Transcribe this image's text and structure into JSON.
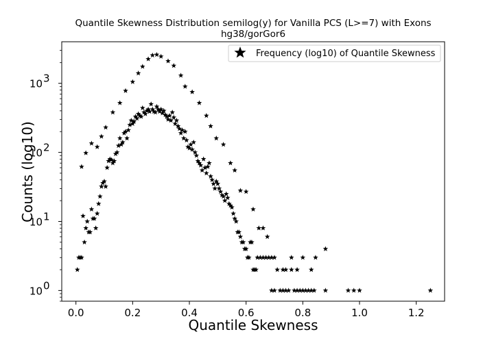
{
  "chart_data": {
    "type": "scatter",
    "title": "Quantile Skewness Distribution semilog(y) for Vanilla PCS (L>=7) with Exons",
    "subtitle": "hg38/gorGor6",
    "xlabel": "Quantile Skewness",
    "ylabel": "Counts (log10)",
    "xlim": [
      -0.05,
      1.3
    ],
    "ylim": [
      0.7,
      4000
    ],
    "yscale": "log",
    "xticks": [
      0.0,
      0.2,
      0.4,
      0.6,
      0.8,
      1.0,
      1.2
    ],
    "xtick_labels": [
      "0.0",
      "0.2",
      "0.4",
      "0.6",
      "0.8",
      "1.0",
      "1.2"
    ],
    "yticks": [
      1,
      10,
      100,
      1000
    ],
    "ytick_labels": [
      "10",
      "10",
      "10",
      "10"
    ],
    "ytick_exponents": [
      "0",
      "1",
      "2",
      "3"
    ],
    "grid": false,
    "legend_position": "top-right",
    "marker": "star",
    "marker_color": "#000000",
    "series": [
      {
        "name": "Frequency (log10) of Quantile Skewness",
        "points": [
          [
            0.005,
            2
          ],
          [
            0.01,
            3
          ],
          [
            0.015,
            3
          ],
          [
            0.02,
            3
          ],
          [
            0.025,
            12
          ],
          [
            0.03,
            5
          ],
          [
            0.035,
            8
          ],
          [
            0.04,
            10
          ],
          [
            0.045,
            7
          ],
          [
            0.05,
            7
          ],
          [
            0.055,
            15
          ],
          [
            0.06,
            11
          ],
          [
            0.065,
            11
          ],
          [
            0.07,
            8
          ],
          [
            0.075,
            13
          ],
          [
            0.08,
            18
          ],
          [
            0.085,
            23
          ],
          [
            0.09,
            32
          ],
          [
            0.095,
            36
          ],
          [
            0.1,
            38
          ],
          [
            0.105,
            32
          ],
          [
            0.11,
            60
          ],
          [
            0.115,
            75
          ],
          [
            0.12,
            80
          ],
          [
            0.125,
            78
          ],
          [
            0.13,
            70
          ],
          [
            0.135,
            75
          ],
          [
            0.14,
            95
          ],
          [
            0.145,
            100
          ],
          [
            0.15,
            125
          ],
          [
            0.155,
            160
          ],
          [
            0.16,
            130
          ],
          [
            0.165,
            140
          ],
          [
            0.17,
            190
          ],
          [
            0.175,
            200
          ],
          [
            0.18,
            160
          ],
          [
            0.185,
            210
          ],
          [
            0.19,
            250
          ],
          [
            0.195,
            290
          ],
          [
            0.2,
            260
          ],
          [
            0.205,
            280
          ],
          [
            0.21,
            330
          ],
          [
            0.215,
            310
          ],
          [
            0.22,
            360
          ],
          [
            0.225,
            340
          ],
          [
            0.23,
            330
          ],
          [
            0.235,
            440
          ],
          [
            0.24,
            380
          ],
          [
            0.245,
            360
          ],
          [
            0.25,
            400
          ],
          [
            0.255,
            420
          ],
          [
            0.26,
            390
          ],
          [
            0.265,
            500
          ],
          [
            0.27,
            420
          ],
          [
            0.275,
            390
          ],
          [
            0.28,
            380
          ],
          [
            0.285,
            460
          ],
          [
            0.29,
            420
          ],
          [
            0.295,
            390
          ],
          [
            0.3,
            420
          ],
          [
            0.305,
            370
          ],
          [
            0.31,
            400
          ],
          [
            0.315,
            350
          ],
          [
            0.32,
            330
          ],
          [
            0.325,
            300
          ],
          [
            0.33,
            340
          ],
          [
            0.335,
            290
          ],
          [
            0.34,
            380
          ],
          [
            0.345,
            320
          ],
          [
            0.35,
            260
          ],
          [
            0.355,
            290
          ],
          [
            0.36,
            240
          ],
          [
            0.365,
            220
          ],
          [
            0.37,
            190
          ],
          [
            0.375,
            210
          ],
          [
            0.38,
            160
          ],
          [
            0.385,
            200
          ],
          [
            0.39,
            150
          ],
          [
            0.395,
            120
          ],
          [
            0.4,
            115
          ],
          [
            0.405,
            130
          ],
          [
            0.41,
            110
          ],
          [
            0.415,
            140
          ],
          [
            0.42,
            100
          ],
          [
            0.425,
            90
          ],
          [
            0.43,
            75
          ],
          [
            0.435,
            70
          ],
          [
            0.44,
            65
          ],
          [
            0.445,
            55
          ],
          [
            0.45,
            80
          ],
          [
            0.455,
            60
          ],
          [
            0.46,
            50
          ],
          [
            0.465,
            62
          ],
          [
            0.47,
            70
          ],
          [
            0.475,
            45
          ],
          [
            0.48,
            40
          ],
          [
            0.485,
            35
          ],
          [
            0.49,
            30
          ],
          [
            0.495,
            38
          ],
          [
            0.5,
            35
          ],
          [
            0.505,
            30
          ],
          [
            0.51,
            27
          ],
          [
            0.515,
            24
          ],
          [
            0.52,
            23
          ],
          [
            0.525,
            20
          ],
          [
            0.53,
            25
          ],
          [
            0.535,
            22
          ],
          [
            0.54,
            18
          ],
          [
            0.545,
            17
          ],
          [
            0.55,
            16
          ],
          [
            0.555,
            13
          ],
          [
            0.56,
            11
          ],
          [
            0.565,
            10
          ],
          [
            0.57,
            7
          ],
          [
            0.575,
            7
          ],
          [
            0.58,
            6
          ],
          [
            0.585,
            5
          ],
          [
            0.59,
            5
          ],
          [
            0.595,
            4
          ],
          [
            0.6,
            4
          ],
          [
            0.605,
            3
          ],
          [
            0.61,
            3
          ],
          [
            0.615,
            5
          ],
          [
            0.62,
            5
          ],
          [
            0.625,
            2
          ],
          [
            0.63,
            2
          ],
          [
            0.635,
            2
          ],
          [
            0.64,
            3
          ],
          [
            0.65,
            3
          ],
          [
            0.66,
            3
          ],
          [
            0.67,
            3
          ],
          [
            0.68,
            3
          ],
          [
            0.69,
            1
          ],
          [
            0.7,
            1
          ],
          [
            0.71,
            2
          ],
          [
            0.72,
            1
          ],
          [
            0.73,
            1
          ],
          [
            0.74,
            1
          ],
          [
            0.75,
            1
          ],
          [
            0.76,
            2
          ],
          [
            0.77,
            1
          ],
          [
            0.78,
            1
          ],
          [
            0.79,
            1
          ],
          [
            0.8,
            1
          ],
          [
            0.81,
            1
          ],
          [
            0.82,
            1
          ],
          [
            0.83,
            1
          ],
          [
            0.84,
            1
          ],
          [
            0.88,
            1
          ],
          [
            0.96,
            1
          ],
          [
            0.98,
            1
          ],
          [
            1.0,
            1
          ],
          [
            1.25,
            1
          ],
          [
            0.02,
            62
          ],
          [
            0.035,
            98
          ],
          [
            0.055,
            135
          ],
          [
            0.075,
            120
          ],
          [
            0.09,
            170
          ],
          [
            0.105,
            230
          ],
          [
            0.13,
            380
          ],
          [
            0.155,
            520
          ],
          [
            0.175,
            780
          ],
          [
            0.2,
            1050
          ],
          [
            0.22,
            1400
          ],
          [
            0.235,
            1750
          ],
          [
            0.255,
            2250
          ],
          [
            0.27,
            2550
          ],
          [
            0.285,
            2600
          ],
          [
            0.3,
            2450
          ],
          [
            0.325,
            2100
          ],
          [
            0.345,
            1800
          ],
          [
            0.37,
            1300
          ],
          [
            0.385,
            900
          ],
          [
            0.41,
            750
          ],
          [
            0.435,
            520
          ],
          [
            0.46,
            340
          ],
          [
            0.475,
            240
          ],
          [
            0.495,
            160
          ],
          [
            0.52,
            130
          ],
          [
            0.545,
            70
          ],
          [
            0.56,
            55
          ],
          [
            0.58,
            28
          ],
          [
            0.6,
            27
          ],
          [
            0.625,
            15
          ],
          [
            0.645,
            8
          ],
          [
            0.66,
            8
          ],
          [
            0.675,
            6
          ],
          [
            0.69,
            3
          ],
          [
            0.7,
            3
          ],
          [
            0.73,
            2
          ],
          [
            0.74,
            2
          ],
          [
            0.76,
            3
          ],
          [
            0.78,
            2
          ],
          [
            0.8,
            3
          ],
          [
            0.83,
            2
          ],
          [
            0.845,
            3
          ],
          [
            0.88,
            4
          ]
        ]
      }
    ]
  }
}
